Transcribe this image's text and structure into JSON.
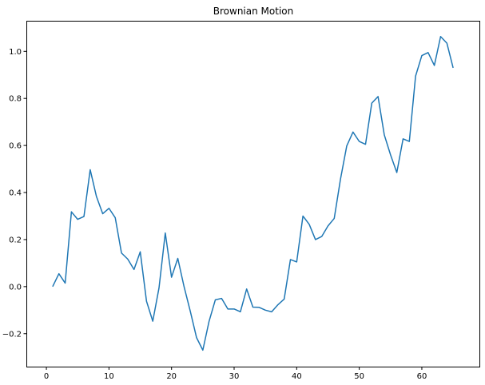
{
  "chart_data": {
    "type": "line",
    "title": "Brownian Motion",
    "xlabel": "",
    "ylabel": "",
    "xlim": [
      -3.2,
      69.2
    ],
    "ylim": [
      -0.34,
      1.13
    ],
    "xticks": [
      0,
      10,
      20,
      30,
      40,
      50,
      60
    ],
    "yticks": [
      -0.2,
      0.0,
      0.2,
      0.4,
      0.6,
      0.8,
      1.0
    ],
    "ytick_labels": [
      "−0.2",
      "0.0",
      "0.2",
      "0.4",
      "0.6",
      "0.8",
      "1.0"
    ],
    "grid": false,
    "line_color": "#1f77b4",
    "series": [
      {
        "x": [
          1,
          2,
          3,
          4,
          5,
          6,
          7,
          8,
          9,
          10,
          11,
          12,
          13,
          14,
          15,
          16,
          17,
          18,
          19,
          20,
          21,
          22,
          23,
          24,
          25,
          26,
          27,
          28,
          29,
          30,
          31,
          32,
          33,
          34,
          35,
          36,
          37,
          38,
          39,
          40,
          41,
          42,
          43,
          44,
          45,
          46,
          47,
          48,
          49,
          50,
          51,
          52,
          53,
          54,
          55,
          56,
          57,
          58,
          59,
          60,
          61,
          62,
          63,
          64,
          65
        ],
        "y": [
          0.0,
          0.055,
          0.015,
          0.318,
          0.286,
          0.298,
          0.497,
          0.383,
          0.31,
          0.333,
          0.293,
          0.143,
          0.117,
          0.073,
          0.148,
          -0.062,
          -0.147,
          -0.005,
          0.228,
          0.04,
          0.12,
          0.0,
          -0.105,
          -0.217,
          -0.27,
          -0.147,
          -0.056,
          -0.05,
          -0.095,
          -0.095,
          -0.107,
          -0.01,
          -0.087,
          -0.088,
          -0.1,
          -0.107,
          -0.077,
          -0.053,
          0.115,
          0.105,
          0.3,
          0.265,
          0.2,
          0.213,
          0.258,
          0.29,
          0.457,
          0.598,
          0.657,
          0.617,
          0.605,
          0.78,
          0.808,
          0.645,
          0.56,
          0.485,
          0.628,
          0.617,
          0.895,
          0.982,
          0.995,
          0.94,
          1.063,
          1.035,
          0.93
        ]
      }
    ]
  }
}
